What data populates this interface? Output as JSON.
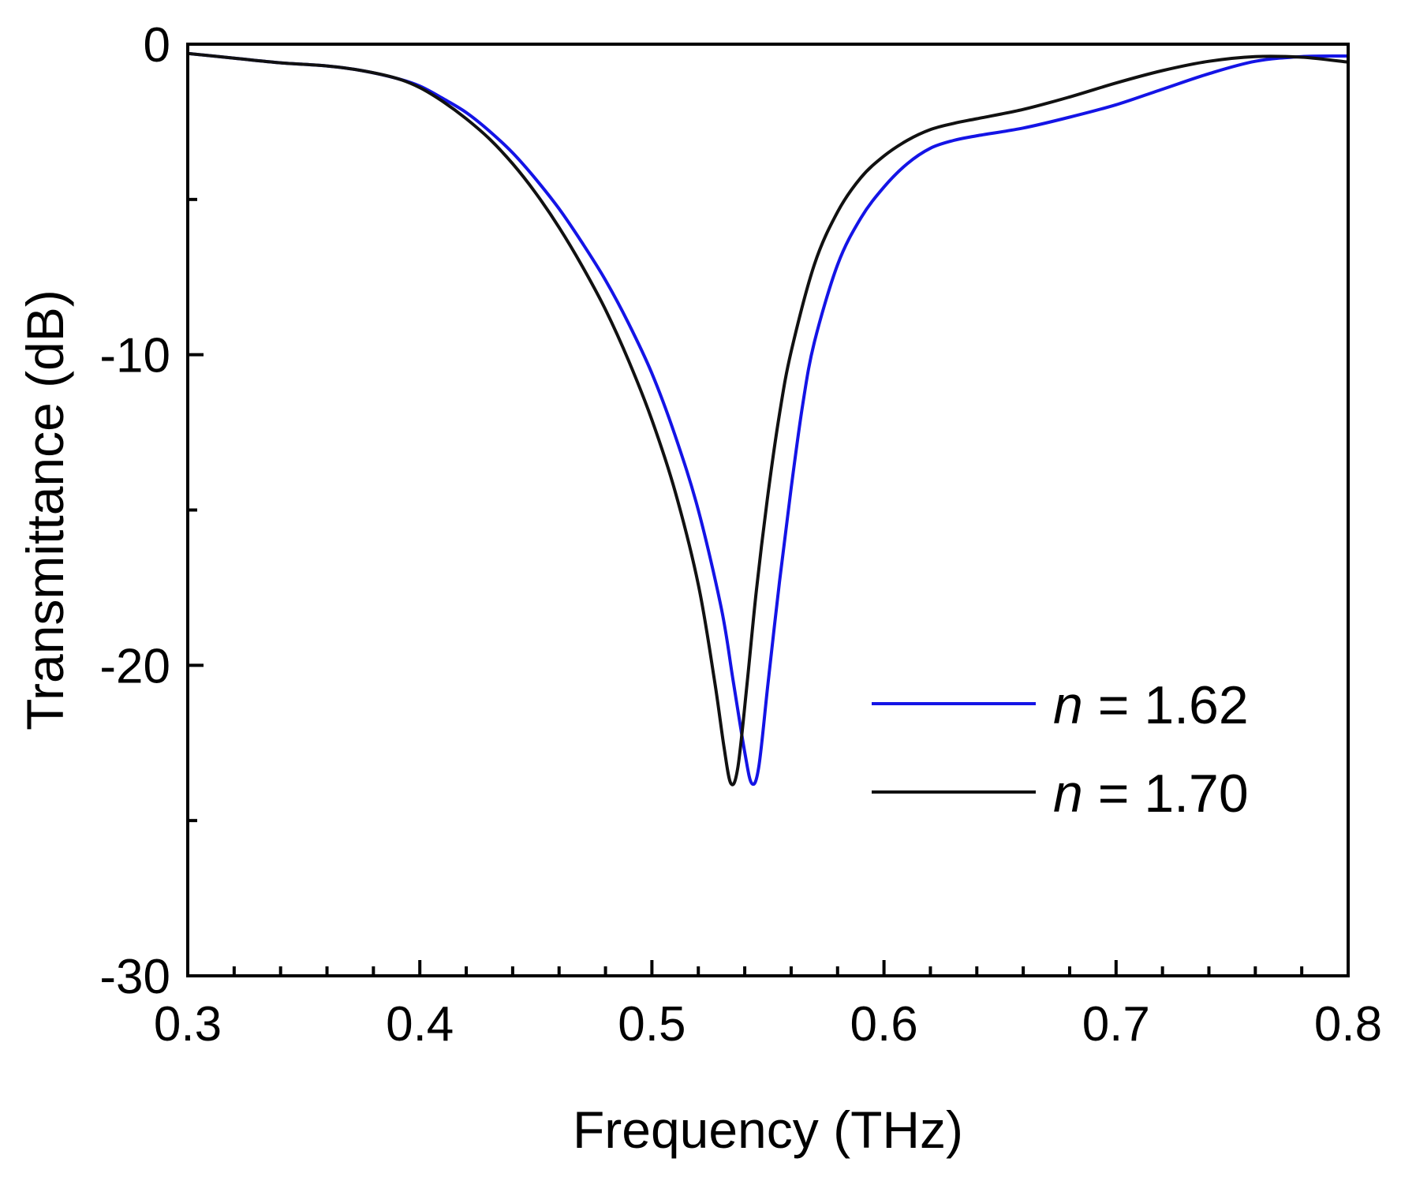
{
  "chart_data": {
    "type": "line",
    "title": "",
    "xlabel": "Frequency (THz)",
    "ylabel": "Transmittance (dB)",
    "xlim": [
      0.3,
      0.8
    ],
    "ylim": [
      -30,
      0
    ],
    "x_ticks": [
      0.3,
      0.4,
      0.5,
      0.6,
      0.7,
      0.8
    ],
    "x_tick_labels": [
      "0.3",
      "0.4",
      "0.5",
      "0.6",
      "0.7",
      "0.8"
    ],
    "y_ticks": [
      0,
      -10,
      -20,
      -30
    ],
    "y_tick_labels": [
      "0",
      "-10",
      "-20",
      "-30"
    ],
    "grid": false,
    "legend_position": "bottom-right",
    "series": [
      {
        "name": "n = 1.62",
        "legend_var": "n",
        "legend_rest": " = 1.62",
        "color": "#1414e6",
        "points": [
          [
            0.3,
            -0.3
          ],
          [
            0.32,
            -0.45
          ],
          [
            0.34,
            -0.6
          ],
          [
            0.36,
            -0.7
          ],
          [
            0.375,
            -0.85
          ],
          [
            0.39,
            -1.1
          ],
          [
            0.4,
            -1.35
          ],
          [
            0.41,
            -1.75
          ],
          [
            0.42,
            -2.2
          ],
          [
            0.43,
            -2.8
          ],
          [
            0.44,
            -3.5
          ],
          [
            0.45,
            -4.35
          ],
          [
            0.46,
            -5.3
          ],
          [
            0.47,
            -6.4
          ],
          [
            0.48,
            -7.6
          ],
          [
            0.49,
            -9.0
          ],
          [
            0.5,
            -10.6
          ],
          [
            0.51,
            -12.6
          ],
          [
            0.52,
            -15.0
          ],
          [
            0.53,
            -18.2
          ],
          [
            0.535,
            -20.5
          ],
          [
            0.54,
            -22.8
          ],
          [
            0.543,
            -23.8
          ],
          [
            0.546,
            -23.3
          ],
          [
            0.55,
            -20.6
          ],
          [
            0.555,
            -17.3
          ],
          [
            0.56,
            -14.3
          ],
          [
            0.565,
            -11.6
          ],
          [
            0.57,
            -9.6
          ],
          [
            0.58,
            -7.1
          ],
          [
            0.59,
            -5.6
          ],
          [
            0.6,
            -4.6
          ],
          [
            0.61,
            -3.85
          ],
          [
            0.62,
            -3.35
          ],
          [
            0.63,
            -3.1
          ],
          [
            0.64,
            -2.95
          ],
          [
            0.66,
            -2.7
          ],
          [
            0.68,
            -2.35
          ],
          [
            0.7,
            -1.95
          ],
          [
            0.72,
            -1.45
          ],
          [
            0.74,
            -0.95
          ],
          [
            0.76,
            -0.55
          ],
          [
            0.78,
            -0.4
          ],
          [
            0.8,
            -0.38
          ]
        ]
      },
      {
        "name": "n = 1.70",
        "legend_var": "n",
        "legend_rest": " = 1.70",
        "color": "#111111",
        "points": [
          [
            0.3,
            -0.3
          ],
          [
            0.32,
            -0.45
          ],
          [
            0.34,
            -0.6
          ],
          [
            0.36,
            -0.7
          ],
          [
            0.375,
            -0.85
          ],
          [
            0.39,
            -1.1
          ],
          [
            0.4,
            -1.4
          ],
          [
            0.41,
            -1.85
          ],
          [
            0.42,
            -2.4
          ],
          [
            0.43,
            -3.05
          ],
          [
            0.44,
            -3.85
          ],
          [
            0.45,
            -4.8
          ],
          [
            0.46,
            -5.9
          ],
          [
            0.47,
            -7.15
          ],
          [
            0.48,
            -8.55
          ],
          [
            0.49,
            -10.2
          ],
          [
            0.5,
            -12.1
          ],
          [
            0.51,
            -14.4
          ],
          [
            0.52,
            -17.4
          ],
          [
            0.527,
            -20.5
          ],
          [
            0.531,
            -22.6
          ],
          [
            0.534,
            -23.8
          ],
          [
            0.537,
            -23.3
          ],
          [
            0.541,
            -20.6
          ],
          [
            0.545,
            -17.6
          ],
          [
            0.55,
            -14.5
          ],
          [
            0.555,
            -11.9
          ],
          [
            0.56,
            -9.9
          ],
          [
            0.57,
            -7.1
          ],
          [
            0.58,
            -5.4
          ],
          [
            0.59,
            -4.3
          ],
          [
            0.6,
            -3.6
          ],
          [
            0.61,
            -3.1
          ],
          [
            0.62,
            -2.75
          ],
          [
            0.63,
            -2.55
          ],
          [
            0.64,
            -2.4
          ],
          [
            0.66,
            -2.1
          ],
          [
            0.68,
            -1.7
          ],
          [
            0.7,
            -1.25
          ],
          [
            0.72,
            -0.85
          ],
          [
            0.74,
            -0.55
          ],
          [
            0.76,
            -0.4
          ],
          [
            0.78,
            -0.42
          ],
          [
            0.8,
            -0.58
          ]
        ]
      }
    ]
  }
}
